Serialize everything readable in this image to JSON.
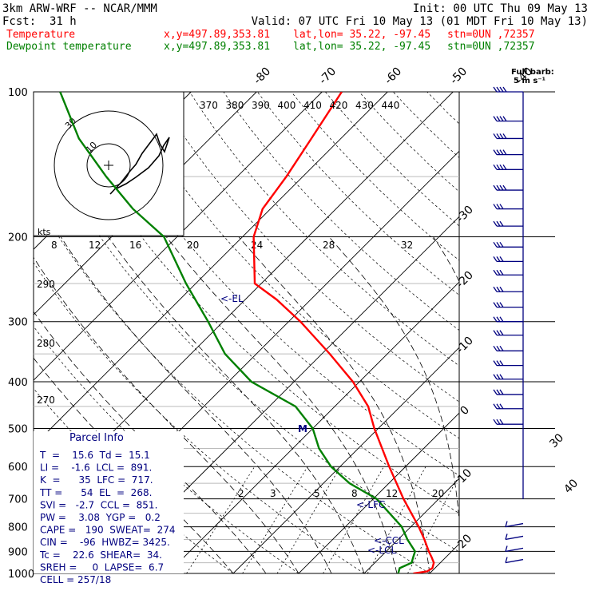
{
  "header": {
    "model": "3km ARW-WRF -- NCAR/MMM",
    "init": "Init: 00 UTC Thu 09 May 13",
    "fcst_label": "Fcst:",
    "fcst_value": "31 h",
    "valid": "Valid: 07 UTC Fri 10 May 13 (01 MDT Fri 10 May 13)",
    "rows": [
      {
        "name": "Temperature",
        "xy": "x,y=497.89,353.81",
        "latlon": "lat,lon= 35.22, -97.45",
        "stn": "stn=0UN ,72357",
        "color": "#ff0000"
      },
      {
        "name": "Dewpoint temperature",
        "xy": "x,y=497.89,353.81",
        "latlon": "lat,lon= 35.22, -97.45",
        "stn": "stn=0UN ,72357",
        "color": "#008000"
      }
    ]
  },
  "barb_legend": {
    "line1": "Full barb:",
    "line2": "5 m s⁻¹"
  },
  "parcel_info": {
    "title": "Parcel Info",
    "rows": [
      "T  =    15.6  Td =  15.1",
      "LI =    -1.6  LCL =  891.",
      "K  =      35  LFC =  717.",
      "TT =      54  EL  =  268.",
      "SVI =   -2.7  CCL =  851.",
      "PW =    3.08  YGP =   0.2",
      "CAPE =   190  SWEAT=  274",
      "CIN =    -96  HWBZ= 3425.",
      "Tc =    22.6  SHEAR=  34.",
      "SREH =     0  LAPSE=  6.7",
      "CELL = 257/18"
    ]
  },
  "levels_labels": {
    "el": "<-EL",
    "lfc": "<-LFC",
    "ccl": "<-CCL",
    "lcl": "<-LCL",
    "m": "M"
  },
  "chart_data": {
    "type": "line",
    "title": "",
    "ylabel": "",
    "xlabel": "",
    "y_axis": {
      "scale": "log",
      "pressure_levels": [
        100,
        200,
        300,
        400,
        500,
        600,
        700,
        800,
        900,
        1000
      ]
    },
    "isotherm_labels_top": [
      -80,
      -70,
      -60,
      -50,
      -40
    ],
    "isotherm_labels_right": [
      -30,
      -20,
      -10,
      0,
      10,
      20,
      30,
      40
    ],
    "theta_labels_top": [
      370,
      380,
      390,
      400,
      410,
      420,
      430,
      440
    ],
    "theta_labels_left": [
      290,
      280,
      270
    ],
    "hodograph": {
      "unit": "kts",
      "ring_labels": [
        10,
        30
      ]
    },
    "mixing_ratio_labels_upper": [
      8,
      12,
      16,
      20,
      24,
      28,
      32
    ],
    "mixing_ratio_labels_lower": [
      2,
      3,
      5,
      8,
      12,
      20
    ],
    "series": [
      {
        "name": "Temperature",
        "color": "#ff0000",
        "points": [
          [
            1000,
            17.5
          ],
          [
            990,
            19.3
          ],
          [
            975,
            19.6
          ],
          [
            950,
            19.0
          ],
          [
            925,
            17.8
          ],
          [
            900,
            16.5
          ],
          [
            850,
            14.0
          ],
          [
            800,
            11.2
          ],
          [
            700,
            4.6
          ],
          [
            600,
            -2.5
          ],
          [
            500,
            -10.6
          ],
          [
            450,
            -14.9
          ],
          [
            400,
            -21.0
          ],
          [
            350,
            -28.8
          ],
          [
            300,
            -38.2
          ],
          [
            270,
            -45.2
          ],
          [
            250,
            -51.0
          ],
          [
            200,
            -58.3
          ],
          [
            175,
            -61.2
          ],
          [
            150,
            -62.5
          ],
          [
            125,
            -64.5
          ],
          [
            100,
            -67.0
          ]
        ]
      },
      {
        "name": "Dewpoint temperature",
        "color": "#008000",
        "points": [
          [
            1000,
            15.2
          ],
          [
            975,
            14.6
          ],
          [
            950,
            15.6
          ],
          [
            925,
            15.0
          ],
          [
            900,
            14.4
          ],
          [
            850,
            11.4
          ],
          [
            800,
            8.6
          ],
          [
            700,
            0.5
          ],
          [
            650,
            -6.0
          ],
          [
            600,
            -11.4
          ],
          [
            550,
            -16.0
          ],
          [
            500,
            -20.0
          ],
          [
            450,
            -26.0
          ],
          [
            400,
            -36.5
          ],
          [
            350,
            -44.8
          ],
          [
            300,
            -52.3
          ],
          [
            250,
            -61.5
          ],
          [
            200,
            -72.0
          ],
          [
            175,
            -81.0
          ],
          [
            150,
            -90.0
          ],
          [
            125,
            -100.0
          ],
          [
            100,
            -110.0
          ]
        ]
      }
    ],
    "wind_barbs": {
      "unit": "kts",
      "upper": [
        [
          100,
          [
            1,
            2
          ]
        ],
        [
          115,
          [
            1,
            2
          ]
        ],
        [
          125,
          [
            1,
            2
          ]
        ],
        [
          135,
          [
            1,
            2
          ]
        ],
        [
          145,
          [
            1,
            2
          ]
        ],
        [
          160,
          [
            1,
            2
          ]
        ],
        [
          175,
          [
            1,
            1
          ]
        ],
        [
          190,
          [
            1,
            1
          ]
        ],
        [
          210,
          [
            1,
            1
          ]
        ],
        [
          225,
          [
            1,
            1
          ]
        ],
        [
          240,
          [
            1,
            1
          ]
        ],
        [
          260,
          [
            1,
            1
          ]
        ],
        [
          280,
          [
            1,
            1
          ]
        ],
        [
          300,
          [
            1,
            1
          ]
        ],
        [
          320,
          [
            1,
            1
          ]
        ],
        [
          345,
          [
            1,
            1
          ]
        ],
        [
          370,
          [
            1,
            1
          ]
        ],
        [
          395,
          [
            1,
            1
          ]
        ],
        [
          425,
          [
            1,
            1
          ]
        ],
        [
          455,
          [
            1,
            1
          ]
        ],
        [
          490,
          [
            1,
            1
          ]
        ]
      ],
      "lower": [
        [
          800,
          "low"
        ],
        [
          850,
          "low"
        ],
        [
          900,
          "low"
        ],
        [
          950,
          "low"
        ]
      ]
    }
  }
}
